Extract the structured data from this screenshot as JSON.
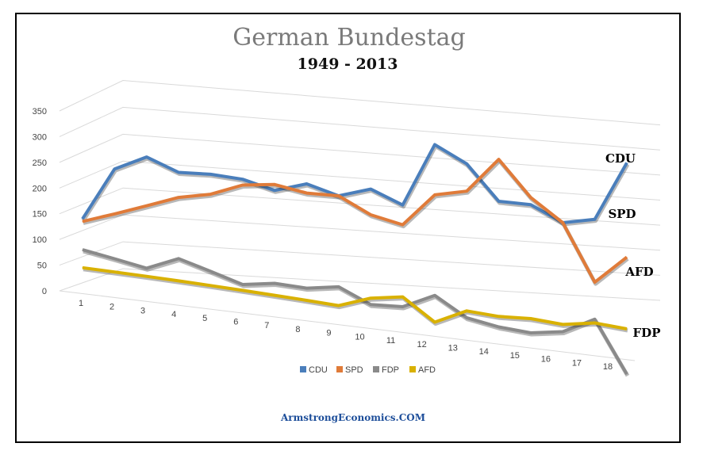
{
  "chart_data": {
    "type": "line",
    "title": "German Bundestag",
    "subtitle": "1949 - 2013",
    "footer": "ArmstrongEconomics.COM",
    "ylim": [
      0,
      350
    ],
    "y_ticks": [
      "0",
      "50",
      "100",
      "150",
      "200",
      "250",
      "300",
      "350"
    ],
    "categories": [
      "1",
      "2",
      "3",
      "4",
      "5",
      "6",
      "7",
      "8",
      "9",
      "10",
      "11",
      "12",
      "13",
      "14",
      "15",
      "16",
      "17",
      "18"
    ],
    "series": [
      {
        "name": "CDU",
        "color": "#4a7ebb",
        "values": [
          140,
          235,
          255,
          225,
          220,
          210,
          190,
          200,
          180,
          190,
          165,
          255,
          225,
          170,
          165,
          140,
          145,
          220
        ]
      },
      {
        "name": "SPD",
        "color": "#e07b39",
        "values": [
          135,
          150,
          165,
          180,
          185,
          200,
          200,
          185,
          180,
          150,
          135,
          180,
          185,
          230,
          175,
          140,
          60,
          95
        ]
      },
      {
        "name": "FDP",
        "color": "#8a8a8a",
        "values": [
          80,
          65,
          50,
          70,
          50,
          30,
          35,
          30,
          35,
          10,
          10,
          30,
          0,
          -10,
          -15,
          -10,
          10,
          -60
        ]
      },
      {
        "name": "AFD",
        "color": "#d9b100",
        "values": [
          45,
          40,
          35,
          30,
          25,
          20,
          15,
          10,
          5,
          20,
          25,
          -10,
          10,
          5,
          5,
          0,
          5,
          0
        ]
      }
    ],
    "series_labels": [
      "CDU",
      "SPD",
      "AFD",
      "FDP"
    ],
    "legend_position": "bottom",
    "grid": true
  }
}
